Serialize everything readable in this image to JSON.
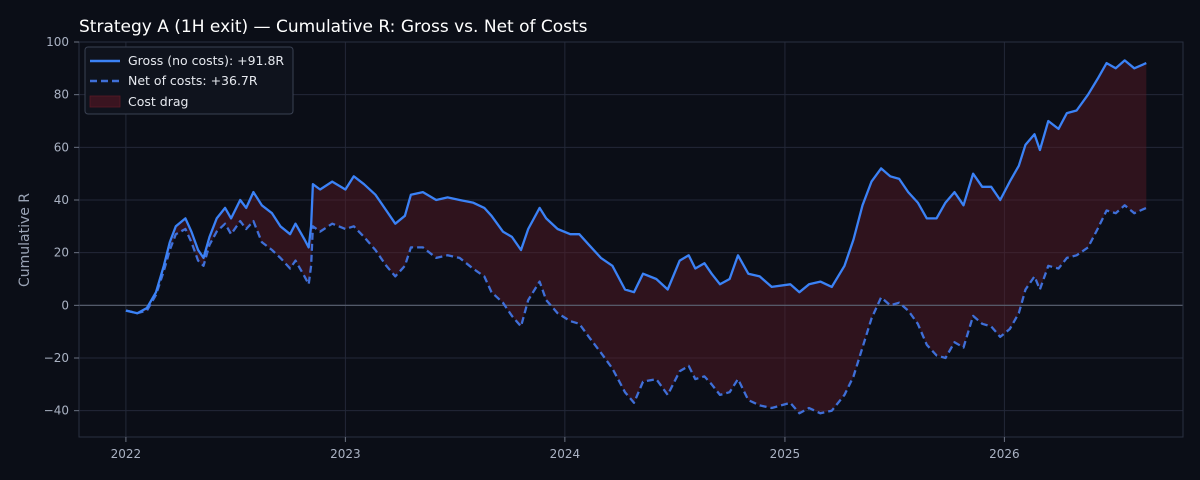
{
  "chart_data": {
    "type": "line",
    "title": "Strategy A (1H exit) — Cumulative R: Gross vs. Net of Costs",
    "xlabel": "",
    "ylabel": "Cumulative R",
    "xlim": [
      "2021-10-15",
      "2026-10-25"
    ],
    "ylim": [
      -50,
      100
    ],
    "x_ticks": [
      "2022-01-01",
      "2023-01-01",
      "2024-01-01",
      "2025-01-01",
      "2026-01-01"
    ],
    "x_tick_labels": [
      "2022",
      "2023",
      "2024",
      "2025",
      "2026"
    ],
    "y_ticks": [
      -40,
      -20,
      0,
      20,
      40,
      60,
      80,
      100
    ],
    "y_tick_labels": [
      "−40",
      "−20",
      "0",
      "20",
      "40",
      "60",
      "80",
      "100"
    ],
    "grid": true,
    "zero_line": true,
    "legend_position": "top-left",
    "colors": {
      "background": "#0b0e17",
      "gross": "#3b82f6",
      "net": "#3f6fd8",
      "cost_drag": "#5a1a26",
      "grid": "#232838",
      "zero_line": "#5b6272"
    },
    "series": [
      {
        "name": "Gross (no costs): +91.8R",
        "style": "solid",
        "points": [
          [
            "2022-01-01",
            -2
          ],
          [
            "2022-01-20",
            -3
          ],
          [
            "2022-02-05",
            -1
          ],
          [
            "2022-02-20",
            5
          ],
          [
            "2022-03-05",
            15
          ],
          [
            "2022-03-15",
            24
          ],
          [
            "2022-03-25",
            30
          ],
          [
            "2022-04-10",
            33
          ],
          [
            "2022-04-20",
            28
          ],
          [
            "2022-05-01",
            21
          ],
          [
            "2022-05-10",
            18
          ],
          [
            "2022-05-20",
            26
          ],
          [
            "2022-06-01",
            33
          ],
          [
            "2022-06-15",
            37
          ],
          [
            "2022-06-25",
            33
          ],
          [
            "2022-07-10",
            40
          ],
          [
            "2022-07-20",
            37
          ],
          [
            "2022-08-01",
            43
          ],
          [
            "2022-08-15",
            38
          ],
          [
            "2022-09-01",
            35
          ],
          [
            "2022-09-15",
            30
          ],
          [
            "2022-10-01",
            27
          ],
          [
            "2022-10-10",
            31
          ],
          [
            "2022-10-25",
            25
          ],
          [
            "2022-11-01",
            22
          ],
          [
            "2022-11-05",
            30
          ],
          [
            "2022-11-08",
            46
          ],
          [
            "2022-11-20",
            44
          ],
          [
            "2022-12-10",
            47
          ],
          [
            "2023-01-01",
            44
          ],
          [
            "2023-01-15",
            49
          ],
          [
            "2023-02-01",
            46
          ],
          [
            "2023-02-20",
            42
          ],
          [
            "2023-03-10",
            36
          ],
          [
            "2023-03-25",
            31
          ],
          [
            "2023-04-10",
            34
          ],
          [
            "2023-04-20",
            42
          ],
          [
            "2023-05-10",
            43
          ],
          [
            "2023-06-01",
            40
          ],
          [
            "2023-06-20",
            41
          ],
          [
            "2023-07-10",
            40
          ],
          [
            "2023-08-01",
            39
          ],
          [
            "2023-08-20",
            37
          ],
          [
            "2023-09-01",
            34
          ],
          [
            "2023-09-20",
            28
          ],
          [
            "2023-10-05",
            26
          ],
          [
            "2023-10-20",
            21
          ],
          [
            "2023-11-01",
            29
          ],
          [
            "2023-11-20",
            37
          ],
          [
            "2023-12-01",
            33
          ],
          [
            "2023-12-20",
            29
          ],
          [
            "2024-01-10",
            27
          ],
          [
            "2024-01-25",
            27
          ],
          [
            "2024-02-10",
            23
          ],
          [
            "2024-03-01",
            18
          ],
          [
            "2024-03-20",
            15
          ],
          [
            "2024-04-10",
            6
          ],
          [
            "2024-04-25",
            5
          ],
          [
            "2024-05-10",
            12
          ],
          [
            "2024-06-01",
            10
          ],
          [
            "2024-06-20",
            6
          ],
          [
            "2024-07-10",
            17
          ],
          [
            "2024-07-25",
            19
          ],
          [
            "2024-08-05",
            14
          ],
          [
            "2024-08-20",
            16
          ],
          [
            "2024-09-01",
            12
          ],
          [
            "2024-09-15",
            8
          ],
          [
            "2024-10-01",
            10
          ],
          [
            "2024-10-15",
            19
          ],
          [
            "2024-11-01",
            12
          ],
          [
            "2024-11-20",
            11
          ],
          [
            "2024-12-10",
            7
          ],
          [
            "2025-01-10",
            8
          ],
          [
            "2025-01-25",
            5
          ],
          [
            "2025-02-10",
            8
          ],
          [
            "2025-03-01",
            9
          ],
          [
            "2025-03-20",
            7
          ],
          [
            "2025-04-10",
            15
          ],
          [
            "2025-04-25",
            25
          ],
          [
            "2025-05-10",
            38
          ],
          [
            "2025-05-25",
            47
          ],
          [
            "2025-06-10",
            52
          ],
          [
            "2025-06-25",
            49
          ],
          [
            "2025-07-10",
            48
          ],
          [
            "2025-07-25",
            43
          ],
          [
            "2025-08-10",
            39
          ],
          [
            "2025-08-25",
            33
          ],
          [
            "2025-09-10",
            33
          ],
          [
            "2025-09-25",
            39
          ],
          [
            "2025-10-10",
            43
          ],
          [
            "2025-10-25",
            38
          ],
          [
            "2025-11-10",
            50
          ],
          [
            "2025-11-25",
            45
          ],
          [
            "2025-12-10",
            45
          ],
          [
            "2025-12-25",
            40
          ],
          [
            "2026-01-10",
            47
          ],
          [
            "2026-01-25",
            53
          ],
          [
            "2026-02-05",
            61
          ],
          [
            "2026-02-20",
            65
          ],
          [
            "2026-03-01",
            59
          ],
          [
            "2026-03-15",
            70
          ],
          [
            "2026-04-01",
            67
          ],
          [
            "2026-04-15",
            73
          ],
          [
            "2026-05-01",
            74
          ],
          [
            "2026-05-20",
            80
          ],
          [
            "2026-06-05",
            86
          ],
          [
            "2026-06-20",
            92
          ],
          [
            "2026-07-05",
            90
          ],
          [
            "2026-07-20",
            93
          ],
          [
            "2026-08-05",
            90
          ],
          [
            "2026-08-25",
            92
          ]
        ]
      },
      {
        "name": "Net of costs: +36.7R",
        "style": "dashed",
        "points": [
          [
            "2022-01-01",
            -2
          ],
          [
            "2022-01-20",
            -3
          ],
          [
            "2022-02-05",
            -2
          ],
          [
            "2022-02-20",
            4
          ],
          [
            "2022-03-05",
            13
          ],
          [
            "2022-03-15",
            21
          ],
          [
            "2022-03-25",
            27
          ],
          [
            "2022-04-10",
            29
          ],
          [
            "2022-04-20",
            24
          ],
          [
            "2022-05-01",
            17
          ],
          [
            "2022-05-10",
            15
          ],
          [
            "2022-05-20",
            23
          ],
          [
            "2022-06-01",
            28
          ],
          [
            "2022-06-15",
            31
          ],
          [
            "2022-06-25",
            27
          ],
          [
            "2022-07-10",
            32
          ],
          [
            "2022-07-20",
            29
          ],
          [
            "2022-08-01",
            32
          ],
          [
            "2022-08-15",
            24
          ],
          [
            "2022-09-01",
            21
          ],
          [
            "2022-09-15",
            18
          ],
          [
            "2022-10-01",
            14
          ],
          [
            "2022-10-10",
            17
          ],
          [
            "2022-10-25",
            11
          ],
          [
            "2022-11-01",
            8
          ],
          [
            "2022-11-05",
            15
          ],
          [
            "2022-11-08",
            30
          ],
          [
            "2022-11-20",
            28
          ],
          [
            "2022-12-10",
            31
          ],
          [
            "2023-01-01",
            29
          ],
          [
            "2023-01-15",
            30
          ],
          [
            "2023-02-01",
            26
          ],
          [
            "2023-02-20",
            21
          ],
          [
            "2023-03-10",
            15
          ],
          [
            "2023-03-25",
            11
          ],
          [
            "2023-04-10",
            15
          ],
          [
            "2023-04-20",
            22
          ],
          [
            "2023-05-10",
            22
          ],
          [
            "2023-06-01",
            18
          ],
          [
            "2023-06-20",
            19
          ],
          [
            "2023-07-10",
            18
          ],
          [
            "2023-08-01",
            14
          ],
          [
            "2023-08-20",
            11
          ],
          [
            "2023-09-01",
            5
          ],
          [
            "2023-09-20",
            1
          ],
          [
            "2023-10-05",
            -4
          ],
          [
            "2023-10-20",
            -8
          ],
          [
            "2023-11-01",
            2
          ],
          [
            "2023-11-20",
            9
          ],
          [
            "2023-12-01",
            2
          ],
          [
            "2023-12-20",
            -3
          ],
          [
            "2024-01-10",
            -6
          ],
          [
            "2024-01-25",
            -7
          ],
          [
            "2024-02-10",
            -12
          ],
          [
            "2024-03-01",
            -18
          ],
          [
            "2024-03-20",
            -24
          ],
          [
            "2024-04-10",
            -33
          ],
          [
            "2024-04-25",
            -37
          ],
          [
            "2024-05-10",
            -29
          ],
          [
            "2024-06-01",
            -28
          ],
          [
            "2024-06-20",
            -34
          ],
          [
            "2024-07-10",
            -25
          ],
          [
            "2024-07-25",
            -23
          ],
          [
            "2024-08-05",
            -28
          ],
          [
            "2024-08-20",
            -27
          ],
          [
            "2024-09-01",
            -30
          ],
          [
            "2024-09-15",
            -34
          ],
          [
            "2024-10-01",
            -33
          ],
          [
            "2024-10-15",
            -28
          ],
          [
            "2024-11-01",
            -36
          ],
          [
            "2024-11-20",
            -38
          ],
          [
            "2024-12-10",
            -39
          ],
          [
            "2025-01-10",
            -37
          ],
          [
            "2025-01-25",
            -41
          ],
          [
            "2025-02-10",
            -39
          ],
          [
            "2025-03-01",
            -41
          ],
          [
            "2025-03-20",
            -40
          ],
          [
            "2025-04-10",
            -34
          ],
          [
            "2025-04-25",
            -27
          ],
          [
            "2025-05-10",
            -16
          ],
          [
            "2025-05-25",
            -5
          ],
          [
            "2025-06-10",
            3
          ],
          [
            "2025-06-25",
            0
          ],
          [
            "2025-07-10",
            1
          ],
          [
            "2025-07-25",
            -2
          ],
          [
            "2025-08-10",
            -7
          ],
          [
            "2025-08-25",
            -15
          ],
          [
            "2025-09-10",
            -19
          ],
          [
            "2025-09-25",
            -20
          ],
          [
            "2025-10-10",
            -14
          ],
          [
            "2025-10-25",
            -16
          ],
          [
            "2025-11-10",
            -4
          ],
          [
            "2025-11-25",
            -7
          ],
          [
            "2025-12-10",
            -8
          ],
          [
            "2025-12-25",
            -12
          ],
          [
            "2026-01-10",
            -9
          ],
          [
            "2026-01-25",
            -3
          ],
          [
            "2026-02-05",
            6
          ],
          [
            "2026-02-20",
            11
          ],
          [
            "2026-03-01",
            6
          ],
          [
            "2026-03-15",
            15
          ],
          [
            "2026-04-01",
            14
          ],
          [
            "2026-04-15",
            18
          ],
          [
            "2026-05-01",
            19
          ],
          [
            "2026-05-20",
            22
          ],
          [
            "2026-06-05",
            29
          ],
          [
            "2026-06-20",
            36
          ],
          [
            "2026-07-05",
            35
          ],
          [
            "2026-07-20",
            38
          ],
          [
            "2026-08-05",
            35
          ],
          [
            "2026-08-25",
            37
          ]
        ]
      }
    ],
    "fill": {
      "name": "Cost drag",
      "between": [
        "Gross (no costs): +91.8R",
        "Net of costs: +36.7R"
      ]
    }
  }
}
